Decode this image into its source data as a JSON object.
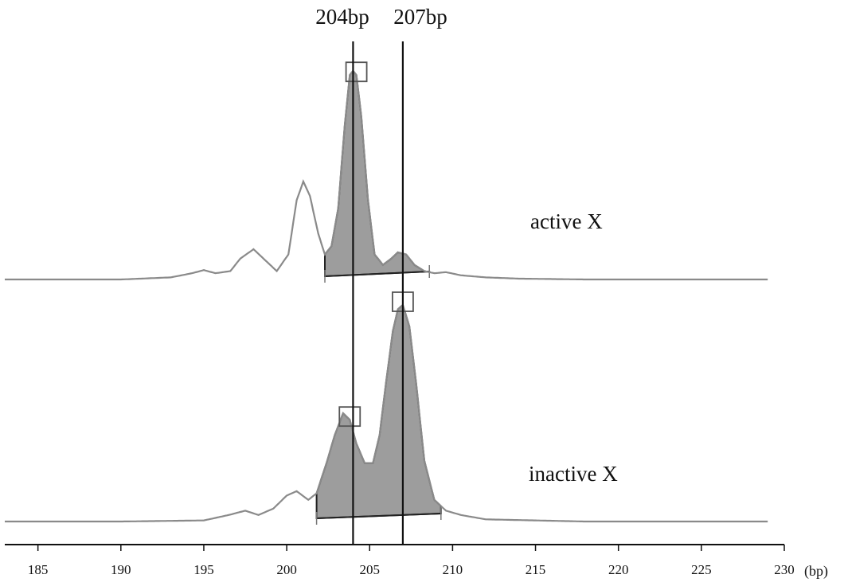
{
  "chart_data": {
    "type": "line",
    "xlabel": "(bp)",
    "xlim": [
      183,
      230
    ],
    "x_ticks": [
      185,
      190,
      195,
      200,
      205,
      210,
      215,
      220,
      225,
      230
    ],
    "markers": [
      {
        "label": "204bp",
        "x": 204
      },
      {
        "label": "207bp",
        "x": 207
      }
    ],
    "series": [
      {
        "name": "active X",
        "x": [
          183,
          190,
          193,
          194.3,
          195,
          195.7,
          196.6,
          197.2,
          198,
          198.6,
          199.4,
          200.1,
          200.6,
          201,
          201.4,
          201.9,
          202.3,
          202.7,
          203.1,
          203.5,
          203.8,
          204,
          204.2,
          204.5,
          204.9,
          205.3,
          205.8,
          206.3,
          206.7,
          207.2,
          207.7,
          208.3,
          208.9,
          209.6,
          210.5,
          212,
          214,
          218,
          229
        ],
        "y": [
          0,
          0,
          0.01,
          0.03,
          0.045,
          0.03,
          0.04,
          0.1,
          0.145,
          0.1,
          0.04,
          0.12,
          0.38,
          0.47,
          0.4,
          0.22,
          0.12,
          0.16,
          0.34,
          0.74,
          0.98,
          1.0,
          0.98,
          0.78,
          0.38,
          0.12,
          0.07,
          0.1,
          0.13,
          0.12,
          0.07,
          0.04,
          0.03,
          0.035,
          0.02,
          0.01,
          0.004,
          0,
          0
        ]
      },
      {
        "name": "inactive X",
        "x": [
          183,
          190,
          195,
          196.5,
          197.5,
          198.3,
          199.2,
          200,
          200.6,
          201.3,
          201.8,
          202.4,
          202.9,
          203.4,
          203.8,
          204.2,
          204.7,
          205.2,
          205.6,
          206,
          206.4,
          206.7,
          207,
          207.4,
          207.8,
          208.3,
          208.9,
          209.6,
          210.5,
          212,
          215,
          218,
          229
        ],
        "y": [
          0,
          0,
          0.005,
          0.03,
          0.05,
          0.03,
          0.06,
          0.12,
          0.14,
          0.1,
          0.13,
          0.27,
          0.4,
          0.5,
          0.47,
          0.36,
          0.27,
          0.27,
          0.4,
          0.65,
          0.88,
          0.98,
          1.0,
          0.9,
          0.64,
          0.28,
          0.1,
          0.05,
          0.03,
          0.01,
          0.005,
          0,
          0
        ]
      }
    ],
    "shaded_regions": [
      {
        "series": "active X",
        "from": 202.3,
        "to": 208.6
      },
      {
        "series": "inactive X",
        "from": 201.8,
        "to": 209.3
      }
    ],
    "peak_boxes": [
      {
        "series": "active X",
        "x": 204.2
      },
      {
        "series": "inactive X",
        "x": 203.8
      },
      {
        "series": "inactive X",
        "x": 207.0
      }
    ]
  }
}
